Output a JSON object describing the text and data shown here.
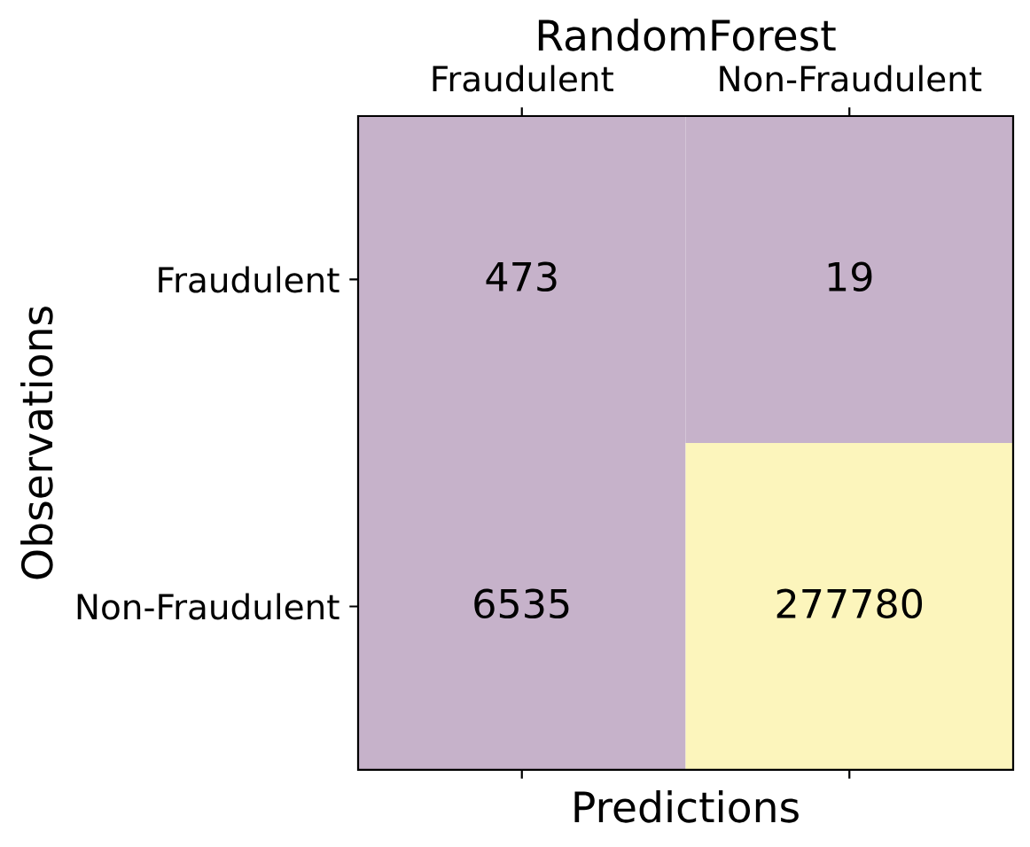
{
  "chart_data": {
    "type": "heatmap",
    "title": "RandomForest",
    "xlabel": "Predictions",
    "ylabel": "Observations",
    "categories": [
      "Fraudulent",
      "Non-Fraudulent"
    ],
    "y_categories": [
      "Fraudulent",
      "Non-Fraudulent"
    ],
    "cells": [
      [
        473,
        19
      ],
      [
        6535,
        277780
      ]
    ],
    "colors": [
      [
        "#c6b2ca",
        "#c6b2ca"
      ],
      [
        "#c6b2ca",
        "#fcf5bc"
      ]
    ],
    "data_labels": true
  }
}
